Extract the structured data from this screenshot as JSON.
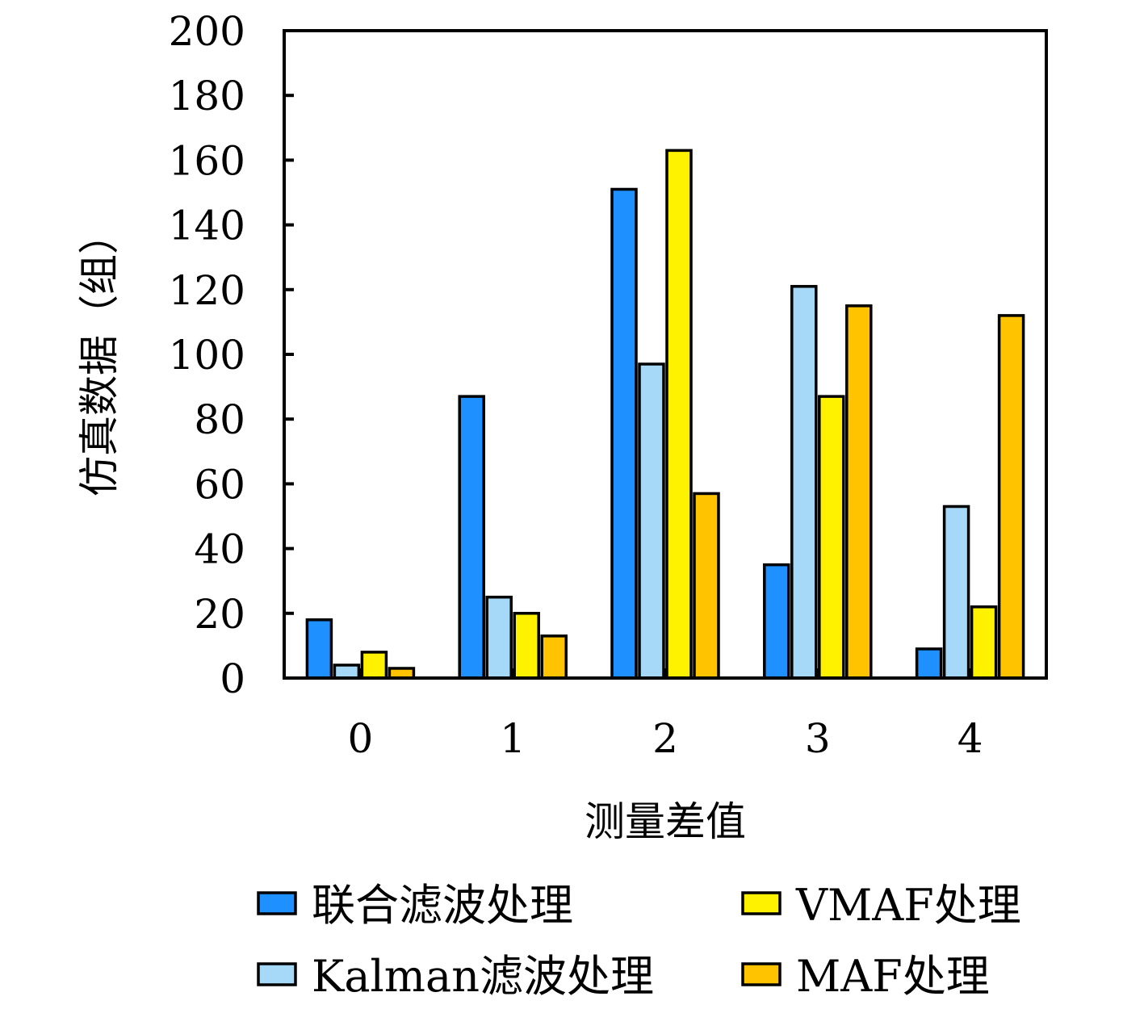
{
  "chart_data": {
    "type": "bar",
    "title": "",
    "xlabel": "测量差值",
    "ylabel": "仿真数据（组）",
    "categories": [
      "0",
      "1",
      "2",
      "3",
      "4"
    ],
    "ylim": [
      0,
      200
    ],
    "yticks": [
      0,
      20,
      40,
      60,
      80,
      100,
      120,
      140,
      160,
      180,
      200
    ],
    "ytick_labels": [
      "0",
      "20",
      "40",
      "60",
      "80",
      "100",
      "120",
      "140",
      "160",
      "180",
      "200"
    ],
    "grid": false,
    "legend_position": "bottom",
    "series": [
      {
        "name": "联合滤波处理",
        "color": "#1E90FF",
        "values": [
          18,
          87,
          151,
          35,
          9
        ]
      },
      {
        "name": "Kalman滤波处理",
        "color": "#A6D8F7",
        "values": [
          4,
          25,
          97,
          121,
          53
        ]
      },
      {
        "name": "VMAF处理",
        "color": "#FFF200",
        "values": [
          8,
          20,
          163,
          87,
          22
        ]
      },
      {
        "name": "MAF处理",
        "color": "#FFC300",
        "values": [
          3,
          13,
          57,
          115,
          112
        ]
      }
    ]
  }
}
